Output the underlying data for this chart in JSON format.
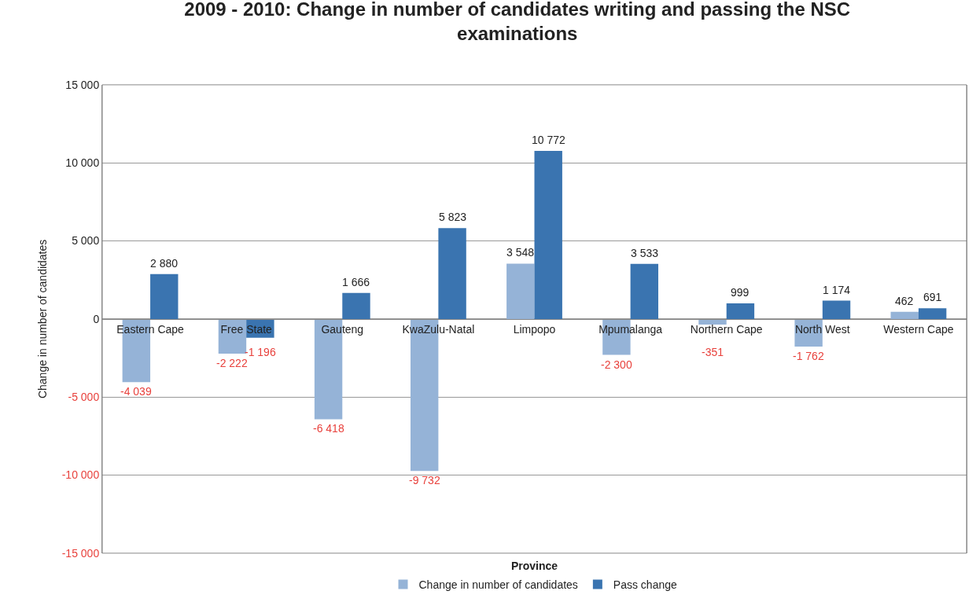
{
  "chart_data": {
    "type": "bar",
    "title": "2009 - 2010: Change in number of candidates writing and passing the NSC examinations",
    "xlabel": "Province",
    "ylabel": "Change in number of candidates",
    "categories": [
      "Eastern Cape",
      "Free State",
      "Gauteng",
      "KwaZulu-Natal",
      "Limpopo",
      "Mpumalanga",
      "Northern Cape",
      "North West",
      "Western Cape"
    ],
    "series": [
      {
        "name": "Change in number of candidates",
        "color": "#95b3d7",
        "values": [
          -4039,
          -2222,
          -6418,
          -9732,
          3548,
          -2300,
          -351,
          -1762,
          462
        ],
        "value_labels": [
          "-4 039",
          "-2 222",
          "-6 418",
          "-9 732",
          "3 548",
          "-2 300",
          "-351",
          "-1 762",
          "462"
        ]
      },
      {
        "name": "Pass change",
        "color": "#3a74b0",
        "values": [
          2880,
          -1196,
          1666,
          5823,
          10772,
          3533,
          999,
          1174,
          691
        ],
        "value_labels": [
          "2 880",
          "-1 196",
          "1 666",
          "5 823",
          "10 772",
          "3 533",
          "999",
          "1 174",
          "691"
        ]
      }
    ],
    "ylim": [
      -15000,
      15000
    ],
    "yticks": [
      {
        "value": -15000,
        "label": "-15 000"
      },
      {
        "value": -10000,
        "label": "-10 000"
      },
      {
        "value": -5000,
        "label": "-5 000"
      },
      0,
      {
        "value": 5000,
        "label": "5 000"
      },
      {
        "value": 10000,
        "label": "10 000"
      },
      {
        "value": 15000,
        "label": "15 000"
      }
    ],
    "grid": "y",
    "legend": "bottom"
  }
}
